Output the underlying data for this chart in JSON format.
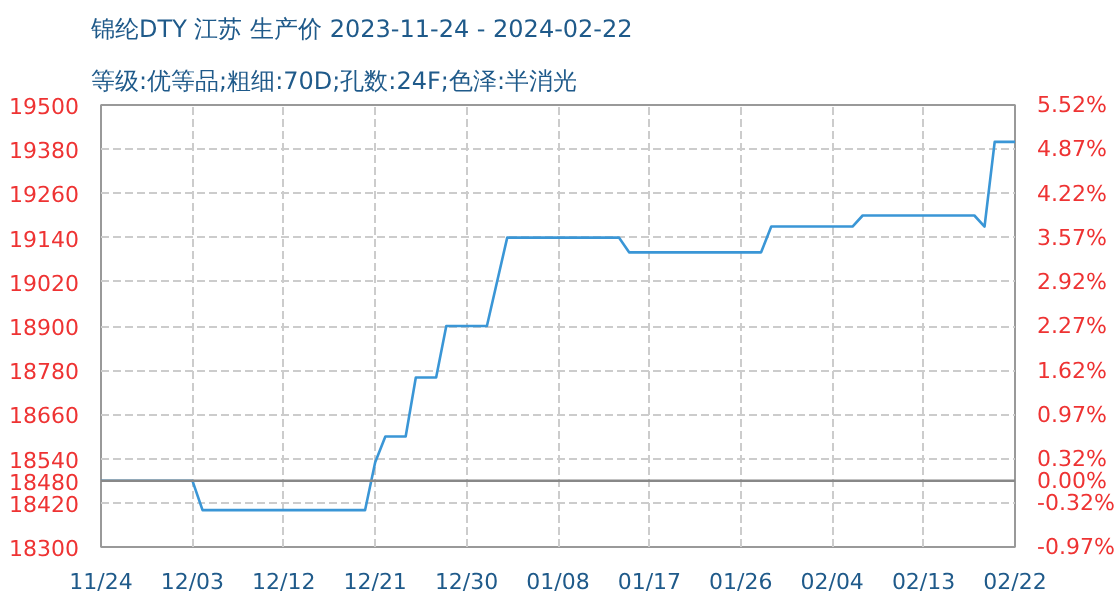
{
  "chart_data": {
    "type": "line",
    "title": "锦纶DTY 江苏 生产价 2023-11-24 - 2024-02-22",
    "subtitle": "等级:优等品;粗细:70D;孔数:24F;色泽:半消光",
    "x": [
      "2023-11-24",
      "2023-12-03",
      "2023-12-04",
      "2023-12-20",
      "2023-12-21",
      "2023-12-22",
      "2023-12-24",
      "2023-12-25",
      "2023-12-27",
      "2023-12-28",
      "2024-01-01",
      "2024-01-02",
      "2024-01-03",
      "2024-01-14",
      "2024-01-15",
      "2024-01-28",
      "2024-01-29",
      "2024-02-06",
      "2024-02-07",
      "2024-02-18",
      "2024-02-19",
      "2024-02-20",
      "2024-02-22"
    ],
    "series": [
      {
        "color": "#3a96d6",
        "values": [
          18480,
          18480,
          18400,
          18400,
          18530,
          18600,
          18600,
          18760,
          18760,
          18900,
          18900,
          19020,
          19140,
          19140,
          19100,
          19100,
          19170,
          19170,
          19200,
          19200,
          19170,
          19400,
          19400
        ]
      }
    ],
    "xlim": [
      "2023-11-24",
      "2024-02-22"
    ],
    "xticks": [
      {
        "value": "2023-11-24",
        "label": "11/24"
      },
      {
        "value": "2023-12-03",
        "label": "12/03"
      },
      {
        "value": "2023-12-12",
        "label": "12/12"
      },
      {
        "value": "2023-12-21",
        "label": "12/21"
      },
      {
        "value": "2023-12-30",
        "label": "12/30"
      },
      {
        "value": "2024-01-08",
        "label": "01/08"
      },
      {
        "value": "2024-01-17",
        "label": "01/17"
      },
      {
        "value": "2024-01-26",
        "label": "01/26"
      },
      {
        "value": "2024-02-04",
        "label": "02/04"
      },
      {
        "value": "2024-02-13",
        "label": "02/13"
      },
      {
        "value": "2024-02-22",
        "label": "02/22"
      }
    ],
    "ylim": [
      18300,
      19500
    ],
    "yticks": [
      18300,
      18420,
      18480,
      18540,
      18660,
      18780,
      18900,
      19020,
      19140,
      19260,
      19380,
      19500
    ],
    "y2lim": [
      -0.97,
      5.52
    ],
    "y2ticks": [
      {
        "value": -0.97,
        "label": "-0.97%"
      },
      {
        "value": -0.32,
        "label": "-0.32%"
      },
      {
        "value": 0,
        "label": "0.00%"
      },
      {
        "value": 0.32,
        "label": "0.32%"
      },
      {
        "value": 0.97,
        "label": "0.97%"
      },
      {
        "value": 1.62,
        "label": "1.62%"
      },
      {
        "value": 2.27,
        "label": "2.27%"
      },
      {
        "value": 2.92,
        "label": "2.92%"
      },
      {
        "value": 3.57,
        "label": "3.57%"
      },
      {
        "value": 4.22,
        "label": "4.22%"
      },
      {
        "value": 4.87,
        "label": "4.87%"
      },
      {
        "value": 5.52,
        "label": "5.52%"
      }
    ],
    "ref_lines": [
      {
        "axis": "y",
        "value": 18480,
        "color": "#888888"
      }
    ],
    "grid": true,
    "line_style": "solid",
    "marker": "none"
  }
}
